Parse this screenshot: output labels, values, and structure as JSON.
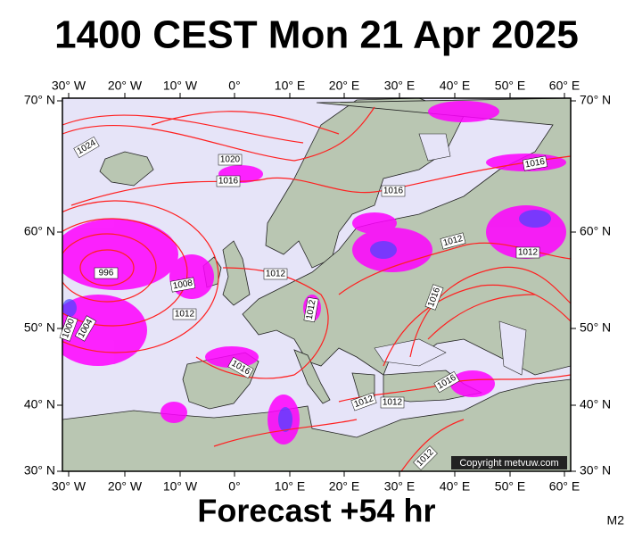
{
  "title": "1400 CEST Mon 21 Apr 2025",
  "footer": "Forecast +54 hr",
  "model": "M2",
  "copyright": "Copyright metvuw.com",
  "longitudes": [
    "30° W",
    "20° W",
    "10° W",
    "0°",
    "10° E",
    "20° E",
    "30° E",
    "40° E",
    "50° E",
    "60° E"
  ],
  "latitudes": [
    "70° N",
    "60° N",
    "50° N",
    "40° N",
    "30° N"
  ],
  "isobar_labels": [
    "1024",
    "1020",
    "1016",
    "1016",
    "1016",
    "1012",
    "1012",
    "1012",
    "1012",
    "1008",
    "996",
    "1012",
    "1000",
    "1004",
    "1016",
    "1016",
    "1016",
    "1012",
    "1012",
    "1012"
  ]
}
